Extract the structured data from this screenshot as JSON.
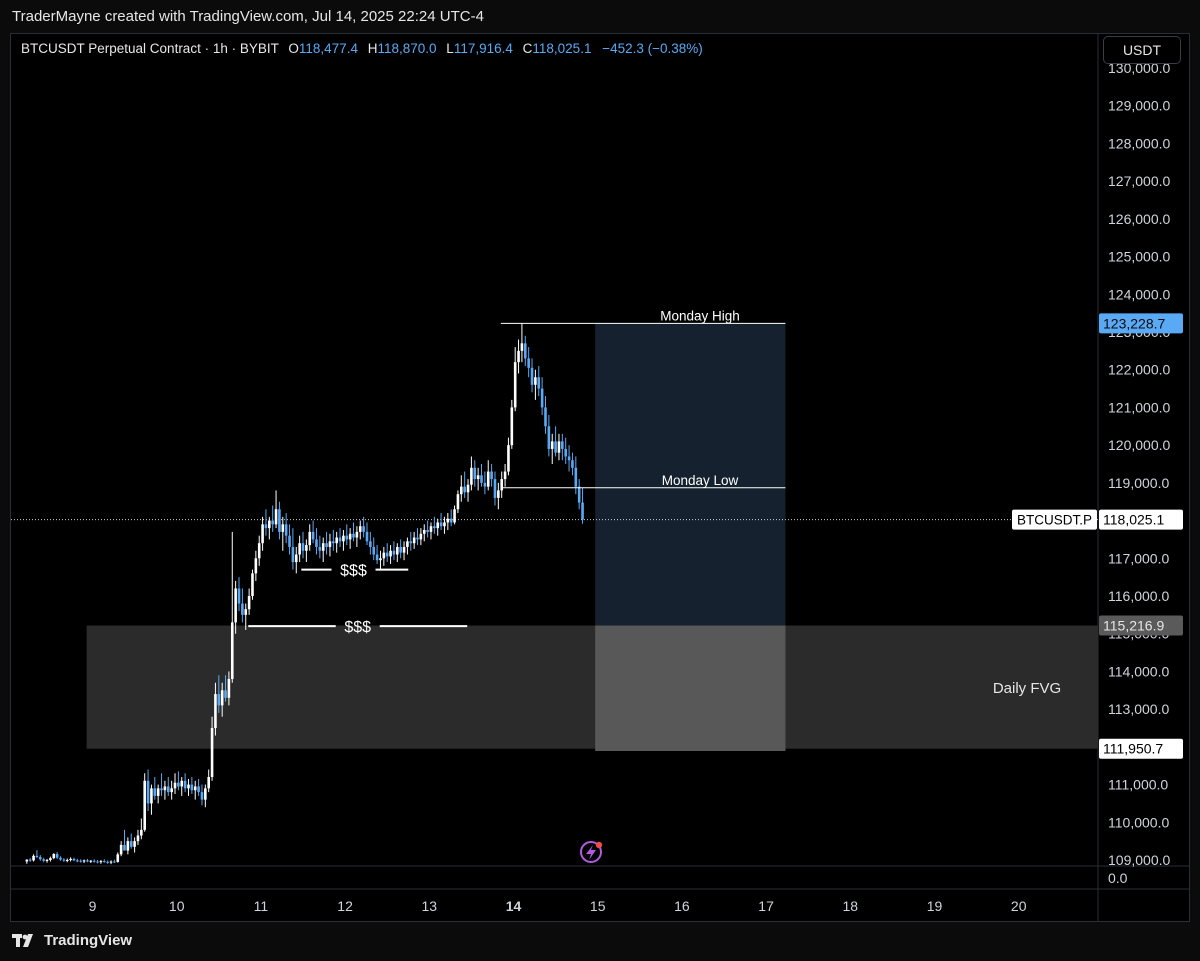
{
  "header": {
    "attribution": "TraderMayne created with TradingView.com, Jul 14, 2025 22:24 UTC-4"
  },
  "legend": {
    "symbol": "BTCUSDT Perpetual Contract · 1h · BYBIT",
    "open_label": "O",
    "open": "118,477.4",
    "high_label": "H",
    "high": "118,870.0",
    "low_label": "L",
    "low": "117,916.4",
    "close_label": "C",
    "close": "118,025.1",
    "change": "−452.3 (−0.38%)"
  },
  "currency_button": "USDT",
  "footer": {
    "brand": "TradingView"
  },
  "colors": {
    "background": "#000000",
    "candle_up": "#ffffff",
    "candle_down": "#5aa9f5",
    "accent": "#5aa9f5",
    "fvg_zone": "#2b2b2b",
    "target_zone": "#15212e"
  },
  "chart_data": {
    "type": "candlestick",
    "symbol_tag": "BTCUSDT.P",
    "last_price": "118,025.1",
    "ylim": [
      108700,
      130300
    ],
    "yticks": [
      109000,
      110000,
      111000,
      112000,
      113000,
      114000,
      115000,
      116000,
      117000,
      118000,
      119000,
      120000,
      121000,
      122000,
      123000,
      124000,
      125000,
      126000,
      127000,
      128000,
      129000,
      130000
    ],
    "ytick_labels": [
      "109,000.0",
      "110,000.0",
      "111,000.0",
      "112,000.0",
      "113,000.0",
      "114,000.0",
      "115,000.0",
      "116,000.0",
      "117,000.0",
      "118,000.0",
      "119,000.0",
      "120,000.0",
      "121,000.0",
      "122,000.0",
      "123,000.0",
      "124,000.0",
      "125,000.0",
      "126,000.0",
      "127,000.0",
      "128,000.0",
      "129,000.0",
      "130,000.0"
    ],
    "volume_axis_label": "0.0",
    "x_labels": [
      "9",
      "10",
      "11",
      "12",
      "13",
      "14",
      "15",
      "16",
      "17",
      "18",
      "19",
      "20"
    ],
    "x_label_bold": "14",
    "price_tags": [
      {
        "value": 123228.7,
        "label": "123,228.7",
        "style": "blue"
      },
      {
        "value": 118025.1,
        "label": "118,025.1",
        "style": "white"
      },
      {
        "value": 115216.9,
        "label": "115,216.9",
        "style": "grey"
      },
      {
        "value": 111950.7,
        "label": "111,950.7",
        "style": "white"
      }
    ],
    "zones": [
      {
        "name": "Daily FVG",
        "top": 115216.9,
        "bottom": 111950.7,
        "from_day": 8.93,
        "to_day": 21.0,
        "label": "Daily FVG"
      },
      {
        "name": "target",
        "top": 123228.7,
        "bottom": 115216.9,
        "from_day": 14.97,
        "to_day": 17.23
      },
      {
        "name": "target-overlap",
        "top": 115216.9,
        "bottom": 111890,
        "from_day": 14.97,
        "to_day": 17.23
      }
    ],
    "lines": [
      {
        "label": "Monday High",
        "value": 123228.7,
        "from_day": 13.85,
        "to_day": 17.23
      },
      {
        "label": "Monday Low",
        "value": 118870,
        "from_day": 13.85,
        "to_day": 17.23
      },
      {
        "label": "$$$",
        "value": 116700,
        "from_day": 11.48,
        "to_day": 12.75,
        "label_day": 12.1
      },
      {
        "label": "$$$",
        "value": 115200,
        "from_day": 10.85,
        "to_day": 13.45,
        "label_day": 12.15
      }
    ],
    "candles": [
      [
        8.22,
        108960,
        109020,
        108900,
        109010
      ],
      [
        8.26,
        109010,
        109050,
        108950,
        108990
      ],
      [
        8.3,
        108990,
        109150,
        108960,
        109110
      ],
      [
        8.34,
        109110,
        109260,
        109050,
        109080
      ],
      [
        8.38,
        109080,
        109130,
        108980,
        109020
      ],
      [
        8.42,
        109020,
        109060,
        108940,
        108980
      ],
      [
        8.46,
        108980,
        109030,
        108930,
        109000
      ],
      [
        8.5,
        109000,
        109090,
        108960,
        109050
      ],
      [
        8.54,
        109050,
        109180,
        109020,
        109160
      ],
      [
        8.58,
        109160,
        109210,
        109030,
        109060
      ],
      [
        8.62,
        109060,
        109100,
        108980,
        109010
      ],
      [
        8.66,
        109010,
        109050,
        108950,
        108990
      ],
      [
        8.7,
        108990,
        109040,
        108940,
        109000
      ],
      [
        8.74,
        109000,
        109070,
        108960,
        109030
      ],
      [
        8.78,
        109030,
        109060,
        108970,
        108990
      ],
      [
        8.82,
        108990,
        109030,
        108940,
        108980
      ],
      [
        8.86,
        108980,
        109020,
        108930,
        108970
      ],
      [
        8.9,
        108970,
        109010,
        108920,
        108990
      ],
      [
        8.94,
        108990,
        109030,
        108940,
        108960
      ],
      [
        8.98,
        108960,
        109000,
        108920,
        108980
      ],
      [
        9.02,
        108980,
        109020,
        108930,
        108960
      ],
      [
        9.06,
        108960,
        109000,
        108910,
        108950
      ],
      [
        9.1,
        108950,
        109000,
        108900,
        108970
      ],
      [
        9.14,
        108970,
        109020,
        108930,
        108950
      ],
      [
        9.18,
        108950,
        108990,
        108900,
        108940
      ],
      [
        9.22,
        108940,
        108990,
        108890,
        108960
      ],
      [
        9.26,
        108960,
        109010,
        108920,
        108950
      ],
      [
        9.3,
        108950,
        109200,
        108930,
        109150
      ],
      [
        9.34,
        109150,
        109500,
        109100,
        109400
      ],
      [
        9.38,
        109400,
        109800,
        109300,
        109250
      ],
      [
        9.42,
        109250,
        109600,
        109150,
        109500
      ],
      [
        9.46,
        109500,
        109700,
        109300,
        109350
      ],
      [
        9.5,
        109350,
        109600,
        109200,
        109500
      ],
      [
        9.54,
        109500,
        109800,
        109400,
        109650
      ],
      [
        9.58,
        109650,
        110100,
        109550,
        109800
      ],
      [
        9.62,
        109800,
        111300,
        109750,
        111100
      ],
      [
        9.66,
        111100,
        111400,
        110300,
        110500
      ],
      [
        9.7,
        110500,
        111000,
        110200,
        110900
      ],
      [
        9.74,
        110900,
        111200,
        110600,
        110700
      ],
      [
        9.78,
        110700,
        111000,
        110500,
        110900
      ],
      [
        9.82,
        110900,
        111300,
        110700,
        110850
      ],
      [
        9.86,
        110850,
        111100,
        110600,
        110950
      ],
      [
        9.9,
        110950,
        111200,
        110700,
        110800
      ],
      [
        9.94,
        110800,
        111100,
        110600,
        110900
      ],
      [
        9.98,
        110900,
        111300,
        110750,
        111050
      ],
      [
        10.02,
        111050,
        111350,
        110850,
        110950
      ],
      [
        10.06,
        110950,
        111200,
        110700,
        111100
      ],
      [
        10.1,
        111100,
        111300,
        110800,
        110900
      ],
      [
        10.14,
        110900,
        111150,
        110700,
        111000
      ],
      [
        10.18,
        111000,
        111200,
        110750,
        110850
      ],
      [
        10.22,
        110850,
        111100,
        110600,
        110950
      ],
      [
        10.26,
        110950,
        111150,
        110700,
        110800
      ],
      [
        10.3,
        110800,
        111000,
        110450,
        110600
      ],
      [
        10.34,
        110600,
        111000,
        110400,
        110900
      ],
      [
        10.38,
        110900,
        111400,
        110800,
        111200
      ],
      [
        10.42,
        111200,
        112800,
        111100,
        112500
      ],
      [
        10.46,
        112500,
        113700,
        112300,
        113400
      ],
      [
        10.5,
        113400,
        113900,
        112900,
        113100
      ],
      [
        10.54,
        113100,
        113700,
        112800,
        113500
      ],
      [
        10.58,
        113500,
        113900,
        113200,
        113300
      ],
      [
        10.62,
        113300,
        114000,
        113100,
        113800
      ],
      [
        10.66,
        113800,
        117700,
        113700,
        115300
      ],
      [
        10.7,
        115300,
        116400,
        115000,
        116200
      ],
      [
        10.74,
        116200,
        116500,
        115600,
        115800
      ],
      [
        10.78,
        115800,
        116200,
        115300,
        115500
      ],
      [
        10.82,
        115500,
        115800,
        115100,
        115650
      ],
      [
        10.86,
        115650,
        116200,
        115500,
        116000
      ],
      [
        10.9,
        116000,
        116700,
        115900,
        116600
      ],
      [
        10.94,
        116600,
        117200,
        116400,
        117000
      ],
      [
        10.98,
        117000,
        117600,
        116800,
        117400
      ],
      [
        11.02,
        117400,
        118100,
        117200,
        117900
      ],
      [
        11.06,
        117900,
        118300,
        117600,
        117800
      ],
      [
        11.1,
        117800,
        118100,
        117500,
        118000
      ],
      [
        11.14,
        118000,
        118400,
        117700,
        117900
      ],
      [
        11.18,
        117900,
        118800,
        117800,
        118300
      ],
      [
        11.22,
        118300,
        118500,
        117500,
        117700
      ],
      [
        11.26,
        117700,
        118100,
        117200,
        117900
      ],
      [
        11.3,
        117900,
        118200,
        117400,
        117600
      ],
      [
        11.34,
        117600,
        117900,
        117100,
        117300
      ],
      [
        11.38,
        117300,
        117800,
        116700,
        116900
      ],
      [
        11.42,
        116900,
        117300,
        116600,
        117100
      ],
      [
        11.46,
        117100,
        117600,
        116900,
        117400
      ],
      [
        11.5,
        117400,
        117700,
        117000,
        117200
      ],
      [
        11.54,
        117200,
        117500,
        116900,
        117350
      ],
      [
        11.58,
        117350,
        117900,
        117200,
        117700
      ],
      [
        11.62,
        117700,
        118000,
        117400,
        117500
      ],
      [
        11.66,
        117500,
        117800,
        117100,
        117300
      ],
      [
        11.7,
        117300,
        117600,
        117000,
        117200
      ],
      [
        11.74,
        117200,
        117550,
        116900,
        117400
      ],
      [
        11.78,
        117400,
        117700,
        117100,
        117300
      ],
      [
        11.82,
        117300,
        117650,
        117050,
        117450
      ],
      [
        11.86,
        117450,
        117750,
        117200,
        117400
      ],
      [
        11.9,
        117400,
        117700,
        117150,
        117550
      ],
      [
        11.94,
        117550,
        117800,
        117300,
        117450
      ],
      [
        11.98,
        117450,
        117750,
        117200,
        117600
      ],
      [
        12.02,
        117600,
        117900,
        117350,
        117500
      ],
      [
        12.06,
        117500,
        117800,
        117250,
        117650
      ],
      [
        12.1,
        117650,
        117950,
        117450,
        117550
      ],
      [
        12.14,
        117550,
        117850,
        117300,
        117700
      ],
      [
        12.18,
        117700,
        118000,
        117500,
        117850
      ],
      [
        12.22,
        117850,
        118100,
        117550,
        117700
      ],
      [
        12.26,
        117700,
        117950,
        117350,
        117450
      ],
      [
        12.3,
        117450,
        117700,
        117100,
        117300
      ],
      [
        12.34,
        117300,
        117550,
        116950,
        117100
      ],
      [
        12.38,
        117100,
        117350,
        116850,
        116950
      ],
      [
        12.42,
        116950,
        117200,
        116700,
        117000
      ],
      [
        12.46,
        117000,
        117300,
        116800,
        117150
      ],
      [
        12.5,
        117150,
        117400,
        116900,
        117050
      ],
      [
        12.54,
        117050,
        117350,
        116850,
        117200
      ],
      [
        12.58,
        117200,
        117450,
        116950,
        117100
      ],
      [
        12.62,
        117100,
        117400,
        116900,
        117300
      ],
      [
        12.66,
        117300,
        117500,
        117000,
        117150
      ],
      [
        12.7,
        117150,
        117450,
        116950,
        117300
      ],
      [
        12.74,
        117300,
        117550,
        117100,
        117450
      ],
      [
        12.78,
        117450,
        117700,
        117200,
        117400
      ],
      [
        12.82,
        117400,
        117700,
        117250,
        117550
      ],
      [
        12.86,
        117550,
        117800,
        117350,
        117500
      ],
      [
        12.9,
        117500,
        117800,
        117350,
        117650
      ],
      [
        12.94,
        117650,
        117900,
        117450,
        117750
      ],
      [
        12.98,
        117750,
        118000,
        117550,
        117700
      ],
      [
        13.02,
        117700,
        117950,
        117500,
        117850
      ],
      [
        13.06,
        117850,
        118100,
        117650,
        117800
      ],
      [
        13.1,
        117800,
        118050,
        117600,
        117950
      ],
      [
        13.14,
        117950,
        118200,
        117750,
        117850
      ],
      [
        13.18,
        117850,
        118100,
        117650,
        117950
      ],
      [
        13.22,
        117950,
        118200,
        117750,
        118050
      ],
      [
        13.26,
        118050,
        118300,
        117850,
        117950
      ],
      [
        13.3,
        117950,
        118400,
        117900,
        118300
      ],
      [
        13.34,
        118300,
        118800,
        118200,
        118700
      ],
      [
        13.38,
        118700,
        119200,
        118500,
        118900
      ],
      [
        13.42,
        118900,
        119300,
        118600,
        118750
      ],
      [
        13.46,
        118750,
        119100,
        118500,
        118950
      ],
      [
        13.5,
        118950,
        119700,
        118800,
        119400
      ],
      [
        13.54,
        119400,
        119600,
        118900,
        119100
      ],
      [
        13.58,
        119100,
        119400,
        118800,
        119200
      ],
      [
        13.62,
        119200,
        119500,
        118900,
        119000
      ],
      [
        13.66,
        119000,
        119300,
        118700,
        118900
      ],
      [
        13.7,
        118900,
        119600,
        118800,
        119300
      ],
      [
        13.74,
        119300,
        119500,
        118900,
        119100
      ],
      [
        13.78,
        119100,
        119300,
        118400,
        118600
      ],
      [
        13.82,
        118600,
        119000,
        118300,
        118800
      ],
      [
        13.86,
        118800,
        119300,
        118600,
        119100
      ],
      [
        13.9,
        119100,
        119500,
        118900,
        119300
      ],
      [
        13.94,
        119300,
        120200,
        119200,
        120000
      ],
      [
        13.98,
        120000,
        121200,
        119900,
        121000
      ],
      [
        14.02,
        121000,
        122600,
        120900,
        122200
      ],
      [
        14.06,
        122200,
        122800,
        121900,
        122500
      ],
      [
        14.1,
        122500,
        123228,
        122200,
        122700
      ],
      [
        14.14,
        122700,
        122900,
        122100,
        122300
      ],
      [
        14.18,
        122300,
        122600,
        121800,
        122050
      ],
      [
        14.22,
        122050,
        122300,
        121400,
        121600
      ],
      [
        14.26,
        121600,
        122000,
        121200,
        121800
      ],
      [
        14.3,
        121800,
        122100,
        121300,
        121500
      ],
      [
        14.34,
        121500,
        121800,
        120800,
        121000
      ],
      [
        14.38,
        121000,
        121300,
        120300,
        120500
      ],
      [
        14.42,
        120500,
        120800,
        119700,
        119900
      ],
      [
        14.46,
        119900,
        120300,
        119500,
        120100
      ],
      [
        14.5,
        120100,
        120500,
        119700,
        119800
      ],
      [
        14.54,
        119800,
        120300,
        119600,
        120100
      ],
      [
        14.58,
        120100,
        120300,
        119600,
        119900
      ],
      [
        14.62,
        119900,
        120200,
        119500,
        119700
      ],
      [
        14.66,
        119700,
        120000,
        119300,
        119600
      ],
      [
        14.7,
        119600,
        119800,
        119200,
        119400
      ],
      [
        14.74,
        119400,
        119700,
        118700,
        118900
      ],
      [
        14.78,
        118900,
        119100,
        118300,
        118477
      ],
      [
        14.82,
        118477,
        118870,
        117916,
        118025
      ]
    ]
  }
}
